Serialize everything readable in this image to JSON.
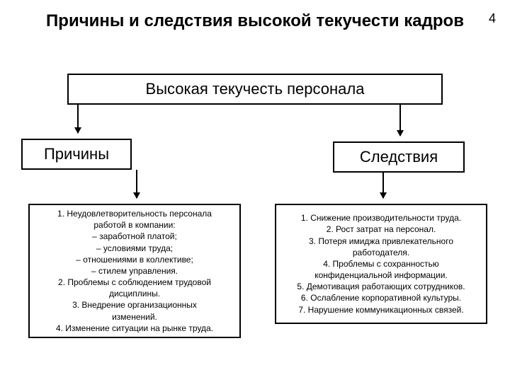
{
  "page_number": "4",
  "title": "Причины и следствия высокой текучести кадров",
  "diagram": {
    "type": "flowchart",
    "colors": {
      "background": "#ffffff",
      "border": "#000000",
      "text": "#000000",
      "arrow": "#000000"
    },
    "title_fontsize": 24,
    "label_fontsize": 22,
    "content_fontsize": 12,
    "border_width": 2,
    "top_box": "Высокая текучесть персонала",
    "left_label": "Причины",
    "right_label": "Следствия",
    "left_content": "1. Неудовлетворительность персонала\nработой в компании:\n– заработной платой;\n– условиями труда;\n– отношениями в коллективе;\n– стилем управления.\n2. Проблемы с соблюдением трудовой\nдисциплины.\n3. Внедрение организационных\nизменений.\n4. Изменение ситуации на рынке труда.",
    "right_content": "1. Снижение производительности труда.\n2. Рост затрат на персонал.\n3. Потеря имиджа привлекательного\nработодателя.\n4. Проблемы с сохранностью\nконфиденциальной информации.\n5. Демотивация работающих сотрудников.\n6. Ослабление корпоративной культуры.\n7. Нарушение коммуникационных связей.",
    "arrows": [
      {
        "from": "top_box",
        "to": "left_label"
      },
      {
        "from": "top_box",
        "to": "right_label"
      },
      {
        "from": "left_label",
        "to": "left_content"
      },
      {
        "from": "right_label",
        "to": "right_content"
      }
    ]
  }
}
